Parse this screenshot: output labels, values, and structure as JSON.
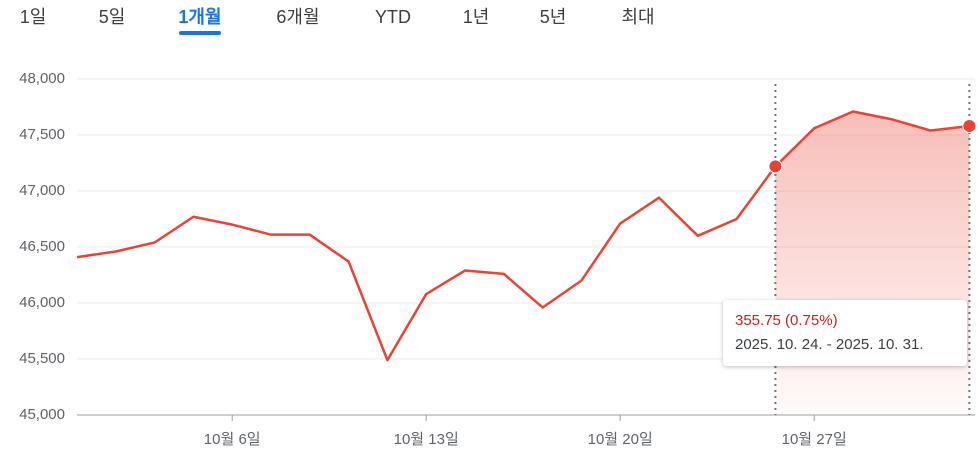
{
  "tabs": {
    "items": [
      "1일",
      "5일",
      "1개월",
      "6개월",
      "YTD",
      "1년",
      "5년",
      "최대"
    ],
    "active": 2
  },
  "chart_data": {
    "type": "line",
    "categories": [
      null,
      null,
      null,
      null,
      "10월 6일",
      null,
      null,
      null,
      null,
      "10월 13일",
      null,
      null,
      null,
      null,
      "10월 20일",
      null,
      null,
      null,
      null,
      "10월 27일",
      null,
      null,
      null,
      null
    ],
    "values": [
      46410,
      46460,
      46540,
      46770,
      46700,
      46610,
      46610,
      46370,
      45490,
      46080,
      46290,
      46260,
      45960,
      46200,
      46710,
      46940,
      46600,
      46750,
      47220,
      47560,
      47710,
      47640,
      47540,
      47580
    ],
    "color": "#ea4335",
    "ylim": [
      45000,
      48000
    ],
    "yticks": [
      {
        "value": 45000,
        "label": "45,000"
      },
      {
        "value": 45500,
        "label": "45,500"
      },
      {
        "value": 46000,
        "label": "46,000"
      },
      {
        "value": 46500,
        "label": "46,500"
      },
      {
        "value": 47000,
        "label": "47,000"
      },
      {
        "value": 47500,
        "label": "47,500"
      },
      {
        "value": 48000,
        "label": "48,000"
      }
    ],
    "grid": true,
    "selection": [
      18,
      23
    ],
    "tooltip": {
      "change": "355.75 (0.75%)",
      "range": "2025. 10. 24. - 2025. 10. 31."
    }
  }
}
